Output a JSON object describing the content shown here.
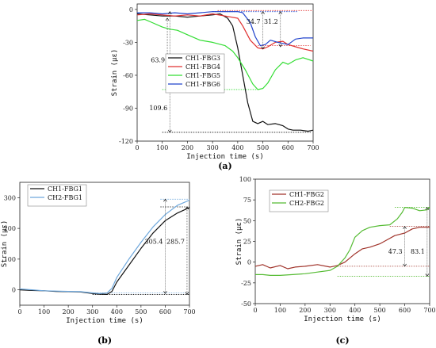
{
  "chart_data": [
    {
      "id": "a",
      "type": "line",
      "caption": "(a)",
      "xlabel": "Injection time (s)",
      "ylabel": "Strain (με)",
      "xlim": [
        0,
        700
      ],
      "ylim": [
        -120,
        5
      ],
      "xticks": [
        0,
        100,
        200,
        300,
        400,
        500,
        600,
        700
      ],
      "yticks": [
        0,
        -30,
        -60,
        -90,
        -120
      ],
      "legend_position": "middle-left",
      "series": [
        {
          "name": "CH1-FBG3",
          "color": "#111111",
          "x": [
            0,
            50,
            100,
            150,
            200,
            250,
            300,
            330,
            360,
            380,
            400,
            420,
            440,
            460,
            480,
            500,
            520,
            550,
            580,
            600,
            620,
            650,
            680,
            700
          ],
          "y": [
            -4,
            -5,
            -6,
            -6,
            -7,
            -6,
            -5,
            -4,
            -8,
            -15,
            -35,
            -60,
            -85,
            -102,
            -104,
            -102,
            -105,
            -104,
            -106,
            -109,
            -110,
            -110,
            -111,
            -110
          ]
        },
        {
          "name": "CH1-FBG4",
          "color": "#e03030",
          "x": [
            0,
            50,
            100,
            150,
            200,
            250,
            300,
            350,
            400,
            420,
            450,
            480,
            500,
            520,
            550,
            580,
            600,
            630,
            660,
            700
          ],
          "y": [
            -5,
            -4,
            -5,
            -6,
            -5,
            -6,
            -4,
            -6,
            -8,
            -15,
            -28,
            -35,
            -36,
            -34,
            -30,
            -29,
            -32,
            -34,
            -36,
            -38
          ]
        },
        {
          "name": "CH1-FBG5",
          "color": "#33dd33",
          "x": [
            0,
            30,
            60,
            100,
            130,
            160,
            200,
            250,
            300,
            350,
            380,
            400,
            430,
            460,
            480,
            500,
            520,
            550,
            580,
            600,
            630,
            660,
            700
          ],
          "y": [
            -10,
            -9,
            -12,
            -16,
            -18,
            -19,
            -23,
            -28,
            -30,
            -33,
            -38,
            -44,
            -55,
            -68,
            -73,
            -72,
            -67,
            -55,
            -48,
            -50,
            -46,
            -44,
            -47
          ]
        },
        {
          "name": "CH1-FBG6",
          "color": "#2244cc",
          "x": [
            0,
            50,
            100,
            150,
            200,
            250,
            300,
            350,
            400,
            420,
            450,
            470,
            490,
            510,
            530,
            560,
            600,
            630,
            660,
            700
          ],
          "y": [
            -3,
            -3,
            -4,
            -3,
            -4,
            -3,
            -2,
            -2,
            -2,
            -3,
            -12,
            -25,
            -33,
            -32,
            -28,
            -30,
            -32,
            -27,
            -26,
            -26
          ]
        }
      ],
      "annotations": [
        {
          "label": "63.9",
          "x": 120,
          "y1": -8,
          "y2": -73,
          "label_at_y": -48
        },
        {
          "label": "109.6",
          "x": 130,
          "y1": -2,
          "y2": -112,
          "label_at_y": -92
        },
        {
          "label": "34.7",
          "x": 500,
          "y1": -2,
          "y2": -36,
          "label_at_y": -13
        },
        {
          "label": "31.2",
          "x": 570,
          "y1": -2,
          "y2": -34,
          "label_at_y": -13
        }
      ],
      "reference_lines": [
        {
          "y": -2,
          "color": "#2244cc",
          "x1": 300,
          "x2": 640
        },
        {
          "y": -1,
          "color": "#e03030",
          "x1": 320,
          "x2": 700
        },
        {
          "y": -33,
          "color": "#e03030",
          "x1": 480,
          "x2": 690
        },
        {
          "y": -73,
          "color": "#33dd33",
          "x1": 100,
          "x2": 480
        },
        {
          "y": -112,
          "color": "#111111",
          "x1": 100,
          "x2": 690
        }
      ]
    },
    {
      "id": "b",
      "type": "line",
      "caption": "(b)",
      "xlabel": "Injection time (s)",
      "ylabel": "Strain (με)",
      "xlim": [
        0,
        700
      ],
      "ylim": [
        -50,
        350
      ],
      "xticks": [
        0,
        100,
        200,
        300,
        400,
        500,
        600,
        700
      ],
      "yticks": [
        0,
        100,
        200,
        300
      ],
      "legend_position": "top-left",
      "series": [
        {
          "name": "CH1-FBG1",
          "color": "#111111",
          "x": [
            0,
            50,
            100,
            150,
            200,
            250,
            300,
            330,
            360,
            380,
            400,
            450,
            500,
            550,
            600,
            650,
            700
          ],
          "y": [
            0,
            -2,
            -3,
            -5,
            -6,
            -7,
            -12,
            -14,
            -15,
            -5,
            25,
            80,
            135,
            185,
            225,
            250,
            268
          ]
        },
        {
          "name": "CH2-FBG1",
          "color": "#6fa8dc",
          "x": [
            0,
            50,
            100,
            150,
            200,
            250,
            300,
            330,
            360,
            380,
            400,
            450,
            500,
            550,
            600,
            650,
            700
          ],
          "y": [
            3,
            0,
            -3,
            -4,
            -5,
            -6,
            -10,
            -12,
            -10,
            5,
            40,
            100,
            155,
            205,
            245,
            275,
            292
          ]
        }
      ],
      "annotations": [
        {
          "label": "305.4",
          "x": 600,
          "y1": 295,
          "y2": -12,
          "label_at_y": 150
        },
        {
          "label": "285.7",
          "x": 690,
          "y1": 270,
          "y2": -15,
          "label_at_y": 150
        }
      ],
      "reference_lines": [
        {
          "y": 295,
          "color": "#6fa8dc",
          "x1": 580,
          "x2": 700
        },
        {
          "y": 270,
          "color": "#111111",
          "x1": 580,
          "x2": 700
        },
        {
          "y": -10,
          "color": "#6fa8dc",
          "x1": 300,
          "x2": 700
        },
        {
          "y": -15,
          "color": "#111111",
          "x1": 300,
          "x2": 700
        }
      ]
    },
    {
      "id": "c",
      "type": "line",
      "caption": "(c)",
      "xlabel": "Injection time (s)",
      "ylabel": "Strain (με)",
      "xlim": [
        0,
        700
      ],
      "ylim": [
        -50,
        100
      ],
      "xticks": [
        0,
        100,
        200,
        300,
        400,
        500,
        600,
        700
      ],
      "yticks": [
        -50,
        -25,
        0,
        25,
        50,
        75,
        100
      ],
      "legend_position": "top-left",
      "series": [
        {
          "name": "CH1-FBG2",
          "color": "#a0332a",
          "x": [
            0,
            30,
            60,
            100,
            130,
            160,
            200,
            250,
            300,
            330,
            360,
            380,
            400,
            430,
            460,
            500,
            530,
            560,
            600,
            630,
            660,
            700
          ],
          "y": [
            -5,
            -3,
            -7,
            -4,
            -8,
            -6,
            -5,
            -3,
            -6,
            -4,
            0,
            5,
            10,
            16,
            18,
            22,
            27,
            32,
            35,
            40,
            42,
            42
          ]
        },
        {
          "name": "CH2-FBG2",
          "color": "#55bb33",
          "x": [
            0,
            30,
            60,
            100,
            150,
            200,
            250,
            300,
            330,
            360,
            380,
            400,
            430,
            460,
            500,
            540,
            570,
            590,
            600,
            630,
            660,
            690,
            700
          ],
          "y": [
            -15,
            -15,
            -16,
            -16,
            -15,
            -14,
            -12,
            -10,
            -5,
            5,
            15,
            30,
            38,
            42,
            44,
            45,
            52,
            60,
            66,
            65,
            62,
            63,
            66
          ]
        }
      ],
      "annotations": [
        {
          "label": "47.3",
          "x": 600,
          "y1": 43,
          "y2": -5,
          "label_at_y": 10
        },
        {
          "label": "83.1",
          "x": 690,
          "y1": 66,
          "y2": -17,
          "label_at_y": 10
        }
      ],
      "reference_lines": [
        {
          "y": 43,
          "color": "#a0332a",
          "x1": 540,
          "x2": 700
        },
        {
          "y": 66,
          "color": "#55bb33",
          "x1": 560,
          "x2": 700
        },
        {
          "y": -5,
          "color": "#a0332a",
          "x1": 330,
          "x2": 700
        },
        {
          "y": -17,
          "color": "#55bb33",
          "x1": 330,
          "x2": 700
        }
      ]
    }
  ]
}
